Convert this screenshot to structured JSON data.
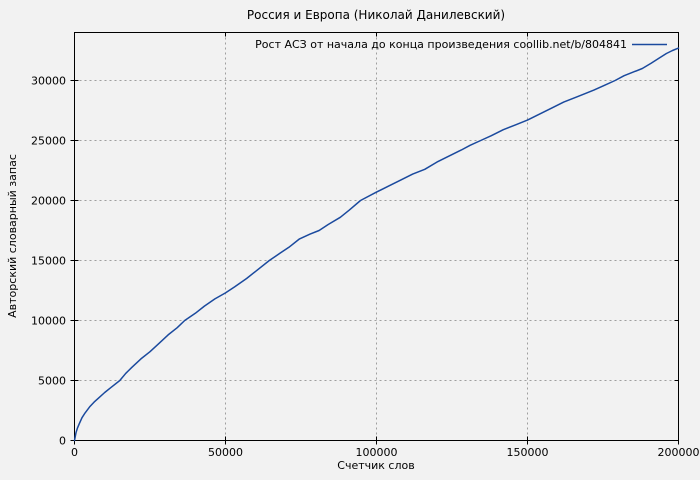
{
  "window": {
    "background_color": "#f2f2f2",
    "text_color": "#000000",
    "grid_color": "#9f9f9f"
  },
  "chart_data": {
    "type": "line",
    "title": "Россия и Европа (Николай Данилевский)",
    "xlabel": "Счетчик слов",
    "ylabel": "Авторский словарный запас",
    "legend": "Рост АСЗ от начала до конца произведения coollib.net/b/804841",
    "legend_position": "top-right-inside",
    "grid": true,
    "line_color": "#1b4a9e",
    "xlim": [
      0,
      200000
    ],
    "ylim": [
      0,
      34000
    ],
    "xticks": [
      0,
      50000,
      100000,
      150000,
      200000
    ],
    "yticks": [
      0,
      5000,
      10000,
      15000,
      20000,
      25000,
      30000
    ],
    "series": [
      {
        "name": "Рост АСЗ от начала до конца произведения coollib.net/b/804841",
        "points": [
          [
            0,
            0
          ],
          [
            500,
            650
          ],
          [
            1000,
            1050
          ],
          [
            1600,
            1400
          ],
          [
            2500,
            1900
          ],
          [
            3500,
            2300
          ],
          [
            5000,
            2800
          ],
          [
            6500,
            3200
          ],
          [
            8000,
            3550
          ],
          [
            10000,
            4000
          ],
          [
            12000,
            4400
          ],
          [
            15000,
            5000
          ],
          [
            17000,
            5600
          ],
          [
            19000,
            6100
          ],
          [
            22000,
            6800
          ],
          [
            25000,
            7400
          ],
          [
            28000,
            8100
          ],
          [
            31000,
            8800
          ],
          [
            34000,
            9400
          ],
          [
            36500,
            10000
          ],
          [
            40000,
            10600
          ],
          [
            43000,
            11200
          ],
          [
            46500,
            11800
          ],
          [
            50000,
            12300
          ],
          [
            53000,
            12800
          ],
          [
            57000,
            13500
          ],
          [
            60000,
            14100
          ],
          [
            64500,
            15000
          ],
          [
            68000,
            15600
          ],
          [
            71000,
            16100
          ],
          [
            74500,
            16800
          ],
          [
            78000,
            17200
          ],
          [
            81000,
            17500
          ],
          [
            84000,
            18000
          ],
          [
            88000,
            18600
          ],
          [
            91000,
            19200
          ],
          [
            94700,
            20000
          ],
          [
            100000,
            20700
          ],
          [
            104000,
            21200
          ],
          [
            108000,
            21700
          ],
          [
            112000,
            22200
          ],
          [
            116000,
            22600
          ],
          [
            120000,
            23200
          ],
          [
            124000,
            23700
          ],
          [
            128000,
            24200
          ],
          [
            131000,
            24600
          ],
          [
            134500,
            25000
          ],
          [
            138000,
            25400
          ],
          [
            142000,
            25900
          ],
          [
            146000,
            26300
          ],
          [
            150000,
            26700
          ],
          [
            154000,
            27200
          ],
          [
            158000,
            27700
          ],
          [
            162000,
            28200
          ],
          [
            166000,
            28600
          ],
          [
            169000,
            28900
          ],
          [
            172000,
            29200
          ],
          [
            175500,
            29600
          ],
          [
            179000,
            30000
          ],
          [
            182000,
            30400
          ],
          [
            185000,
            30700
          ],
          [
            188000,
            31000
          ],
          [
            191000,
            31450
          ],
          [
            193500,
            31850
          ],
          [
            196000,
            32250
          ],
          [
            198000,
            32500
          ],
          [
            200000,
            32700
          ]
        ]
      }
    ]
  }
}
